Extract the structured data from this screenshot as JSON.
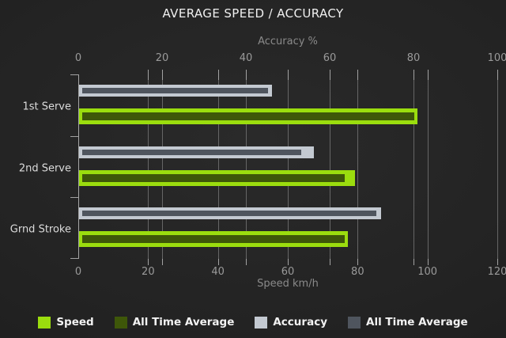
{
  "title": "AVERAGE SPEED / ACCURACY",
  "colors": {
    "speed": "#9bdd0e",
    "speed_all_time_avg": "#3e5709",
    "accuracy": "#c3c9d1",
    "accuracy_all_time_avg": "#4f555e",
    "gridline": "#666666",
    "tick": "#a2a2a2",
    "background": "#232323"
  },
  "chart_data": {
    "type": "bar",
    "orientation": "horizontal",
    "title": "AVERAGE SPEED / ACCURACY",
    "categories": [
      "1st Serve",
      "2nd Serve",
      "Grnd Stroke"
    ],
    "axes": {
      "top": {
        "label": "Accuracy %",
        "min": 0,
        "max": 100,
        "ticks": [
          0,
          20,
          40,
          60,
          80,
          100
        ]
      },
      "bottom": {
        "label": "Speed km/h",
        "min": 0,
        "max": 120,
        "ticks": [
          0,
          20,
          40,
          60,
          80,
          100,
          120
        ]
      }
    },
    "grid": true,
    "legend_position": "bottom",
    "series": [
      {
        "name": "Speed",
        "axis": "bottom",
        "role": "current",
        "color": "#9bdd0e",
        "values": [
          97,
          79,
          77
        ]
      },
      {
        "name": "All Time Average",
        "axis": "bottom",
        "role": "average",
        "color": "#3e5709",
        "values": [
          96,
          76,
          76
        ]
      },
      {
        "name": "Accuracy",
        "axis": "top",
        "role": "current",
        "color": "#c3c9d1",
        "values": [
          46,
          56,
          72
        ]
      },
      {
        "name": "All Time Average",
        "axis": "top",
        "role": "average",
        "color": "#4f555e",
        "values": [
          45,
          53,
          71
        ]
      }
    ]
  },
  "legend": {
    "items": [
      {
        "label": "Speed",
        "color": "#9bdd0e"
      },
      {
        "label": "All Time Average",
        "color": "#3e5709"
      },
      {
        "label": "Accuracy",
        "color": "#c3c9d1"
      },
      {
        "label": "All Time Average",
        "color": "#4f555e"
      }
    ]
  }
}
